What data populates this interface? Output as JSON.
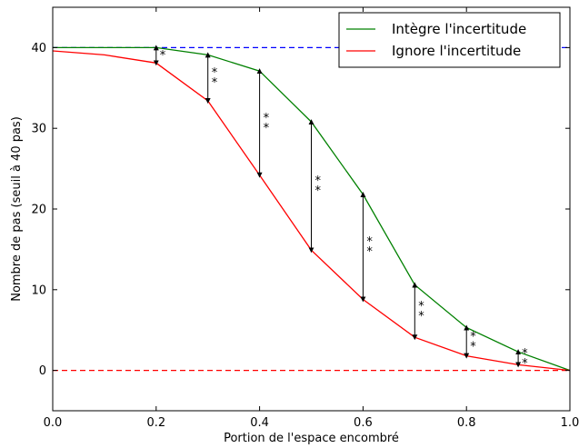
{
  "chart_data": {
    "type": "line",
    "xlabel": "Portion de l'espace encombré",
    "ylabel": "Nombre de pas (seuil à 40 pas)",
    "xlim": [
      0.0,
      1.0
    ],
    "ylim": [
      -5,
      45
    ],
    "xticks": [
      0.0,
      0.2,
      0.4,
      0.6,
      0.8,
      1.0
    ],
    "xtick_labels": [
      "0.0",
      "0.2",
      "0.4",
      "0.6",
      "0.8",
      "1.0"
    ],
    "yticks": [
      0,
      10,
      20,
      30,
      40
    ],
    "ytick_labels": [
      "0",
      "10",
      "20",
      "30",
      "40"
    ],
    "grid": false,
    "legend_position": "top-right",
    "series": [
      {
        "name": "Intègre l'incertitude",
        "color": "#008000",
        "x": [
          0.0,
          0.1,
          0.2,
          0.3,
          0.4,
          0.5,
          0.6,
          0.7,
          0.8,
          0.9,
          1.0
        ],
        "y": [
          40.0,
          40.0,
          40.0,
          39.1,
          37.1,
          30.8,
          21.8,
          10.6,
          5.3,
          2.3,
          0.0
        ]
      },
      {
        "name": "Ignore l'incertitude",
        "color": "#ff0000",
        "x": [
          0.0,
          0.1,
          0.2,
          0.3,
          0.4,
          0.5,
          0.6,
          0.7,
          0.8,
          0.9,
          1.0
        ],
        "y": [
          39.6,
          39.1,
          38.1,
          33.4,
          24.2,
          14.9,
          8.8,
          4.1,
          1.8,
          0.7,
          0.0
        ]
      }
    ],
    "reference_lines": [
      {
        "y": 40,
        "color": "#0000ff",
        "style": "dashed"
      },
      {
        "y": 0,
        "color": "#ff0000",
        "style": "dashed"
      }
    ],
    "significance_markers": [
      {
        "x": 0.2,
        "y_low": 38.1,
        "y_high": 40.0,
        "label": "*"
      },
      {
        "x": 0.3,
        "y_low": 33.4,
        "y_high": 39.1,
        "label": "**"
      },
      {
        "x": 0.4,
        "y_low": 24.2,
        "y_high": 37.1,
        "label": "**"
      },
      {
        "x": 0.5,
        "y_low": 14.9,
        "y_high": 30.8,
        "label": "**"
      },
      {
        "x": 0.6,
        "y_low": 8.8,
        "y_high": 21.8,
        "label": "**"
      },
      {
        "x": 0.7,
        "y_low": 4.1,
        "y_high": 10.6,
        "label": "**"
      },
      {
        "x": 0.8,
        "y_low": 1.8,
        "y_high": 5.3,
        "label": "**"
      },
      {
        "x": 0.9,
        "y_low": 0.7,
        "y_high": 2.3,
        "label": "**"
      }
    ]
  }
}
